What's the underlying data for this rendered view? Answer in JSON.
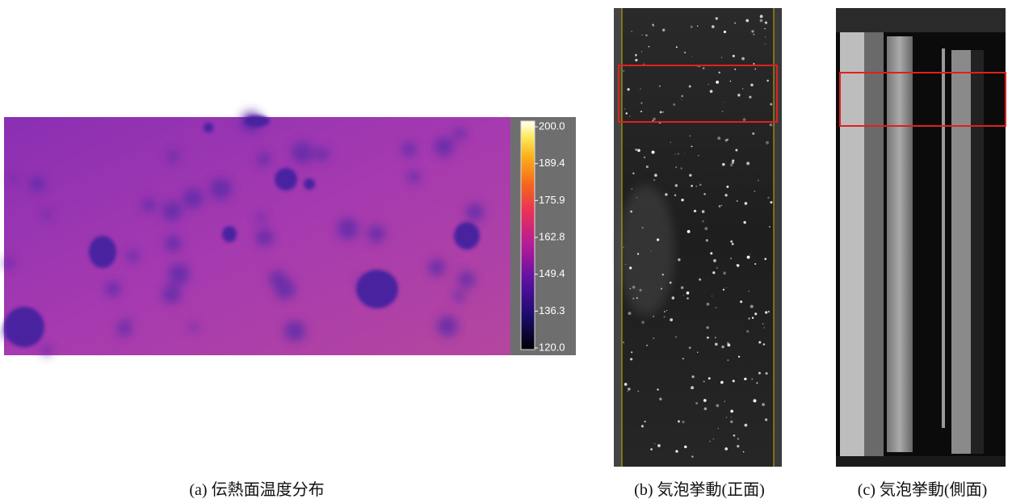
{
  "panels": [
    {
      "caption": "(a)  伝熱面温度分布",
      "colorbar": {
        "ticks": [
          {
            "value": 200,
            "label": "200.0"
          },
          {
            "value": 189.4,
            "label": "189.4"
          },
          {
            "value": 175.9,
            "label": "175.9"
          },
          {
            "value": 162.8,
            "label": "162.8"
          },
          {
            "value": 149.4,
            "label": "149.4"
          },
          {
            "value": 136.3,
            "label": "136.3"
          },
          {
            "value": 120,
            "label": "120.0"
          }
        ]
      }
    },
    {
      "caption": "(b)  気泡挙動(正面)"
    },
    {
      "caption": "(c)  気泡挙動(側面)"
    }
  ]
}
